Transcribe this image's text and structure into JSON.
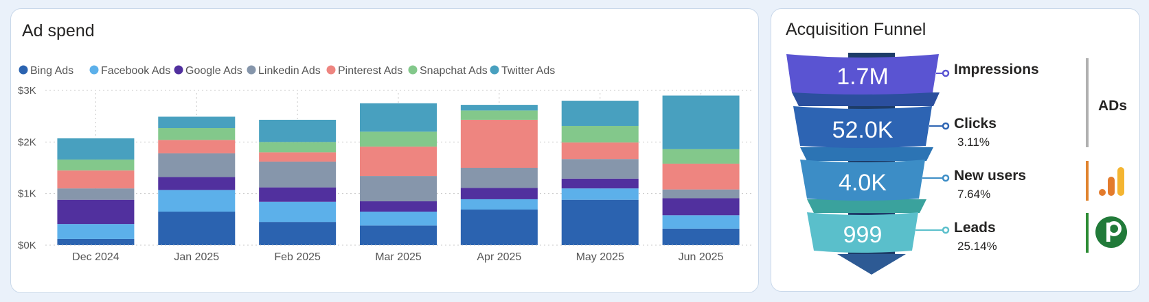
{
  "ad_spend": {
    "title": "Ad spend"
  },
  "chart_data": {
    "type": "bar",
    "stacked": true,
    "title": "Ad spend",
    "categories": [
      "Dec 2024",
      "Jan 2025",
      "Feb 2025",
      "Mar 2025",
      "Apr 2025",
      "May 2025",
      "Jun 2025"
    ],
    "series": [
      {
        "name": "Bing Ads",
        "color": "#2b63b0",
        "values": [
          120,
          650,
          450,
          380,
          690,
          880,
          320
        ]
      },
      {
        "name": "Facebook Ads",
        "color": "#5cb0ea",
        "values": [
          290,
          420,
          390,
          270,
          200,
          220,
          260
        ]
      },
      {
        "name": "Google Ads",
        "color": "#51309e",
        "values": [
          470,
          250,
          280,
          200,
          220,
          190,
          330
        ]
      },
      {
        "name": "Linkedin Ads",
        "color": "#8696ab",
        "values": [
          220,
          460,
          500,
          490,
          390,
          380,
          170
        ]
      },
      {
        "name": "Pinterest Ads",
        "color": "#ee8580",
        "values": [
          350,
          260,
          180,
          570,
          930,
          320,
          500
        ]
      },
      {
        "name": "Snapchat Ads",
        "color": "#83c88b",
        "values": [
          210,
          230,
          200,
          290,
          180,
          320,
          280
        ]
      },
      {
        "name": "Twitter Ads",
        "color": "#48a0bf",
        "values": [
          410,
          220,
          430,
          550,
          110,
          490,
          1040
        ]
      }
    ],
    "y_ticks": [
      "$0K",
      "$1K",
      "$2K",
      "$3K"
    ],
    "ylim": [
      0,
      3000
    ],
    "legend_position": "top-left",
    "grid": true
  },
  "funnel": {
    "title": "Acquisition Funnel",
    "stages": [
      {
        "value": "1.7M",
        "label": "Impressions",
        "rate": "",
        "color": "#5a54d2"
      },
      {
        "value": "52.0K",
        "label": "Clicks",
        "rate": "3.11%",
        "color": "#2d64b3"
      },
      {
        "value": "4.0K",
        "label": "New users",
        "rate": "7.64%",
        "color": "#3c8dc6"
      },
      {
        "value": "999",
        "label": "Leads",
        "rate": "25.14%",
        "color": "#5abfcb"
      }
    ],
    "side": {
      "ads_label": "ADs"
    }
  }
}
